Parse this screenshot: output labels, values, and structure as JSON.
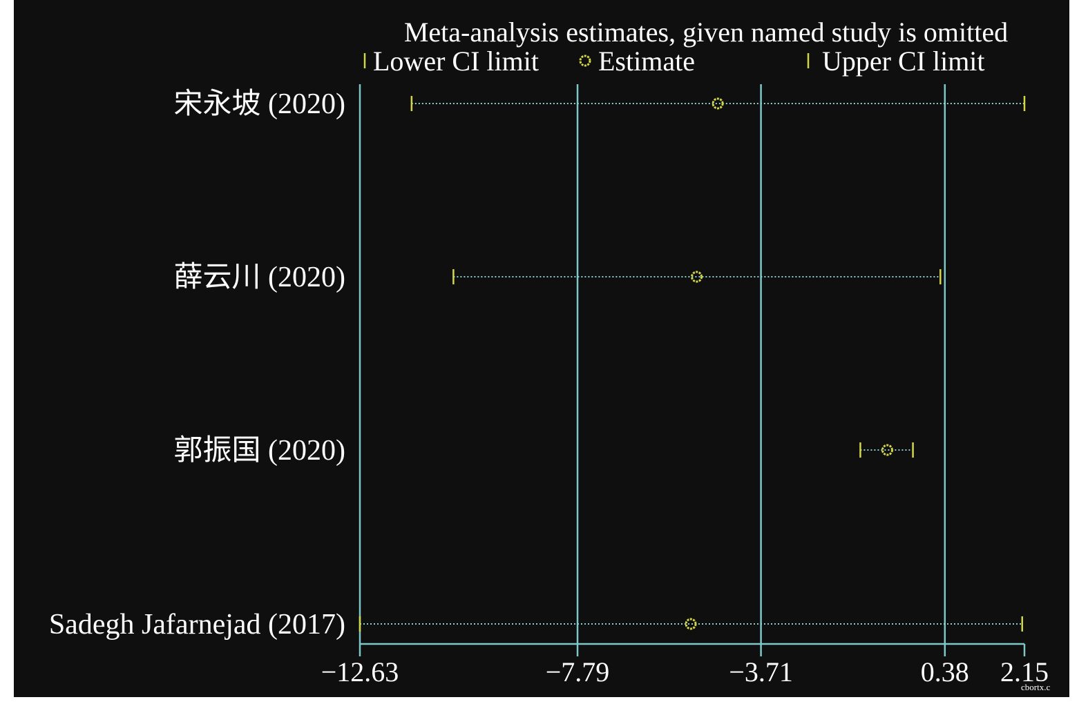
{
  "chart_data": {
    "type": "scatter",
    "title": "Meta-analysis estimates, given named study is omitted",
    "legend": {
      "placement": "top",
      "entries": [
        {
          "label": "Lower CI limit",
          "marker": "tick"
        },
        {
          "label": "Estimate",
          "marker": "circle"
        },
        {
          "label": "Upper CI limit",
          "marker": "tick"
        }
      ]
    },
    "xlim": [
      -12.63,
      2.15
    ],
    "x_ticks": [
      -12.63,
      -7.79,
      -3.71,
      0.38,
      2.15
    ],
    "x_tick_labels": [
      "−12.63",
      "−7.79",
      "−3.71",
      "0.38",
      "2.15"
    ],
    "reference_lines": [
      -12.63,
      -7.79,
      -3.71,
      0.38
    ],
    "studies": [
      {
        "label": "宋永坡 (2020)",
        "lower": -11.48,
        "estimate": -4.67,
        "upper": 2.15
      },
      {
        "label": "薛云川 (2020)",
        "lower": -10.55,
        "estimate": -5.14,
        "upper": 0.28
      },
      {
        "label": "郭振国 (2020)",
        "lower": -1.5,
        "estimate": -0.9,
        "upper": -0.33
      },
      {
        "label": "Sadegh Jafarnejad (2017)",
        "lower": -12.63,
        "estimate": -5.27,
        "upper": 2.1
      }
    ],
    "colors": {
      "background": "#0f0f0f",
      "axis": "#7ec8c8",
      "marker": "#d4d64a",
      "ci_line": "#8fd0d0",
      "text": "#ffffff"
    }
  },
  "watermark": "cbortx.c"
}
